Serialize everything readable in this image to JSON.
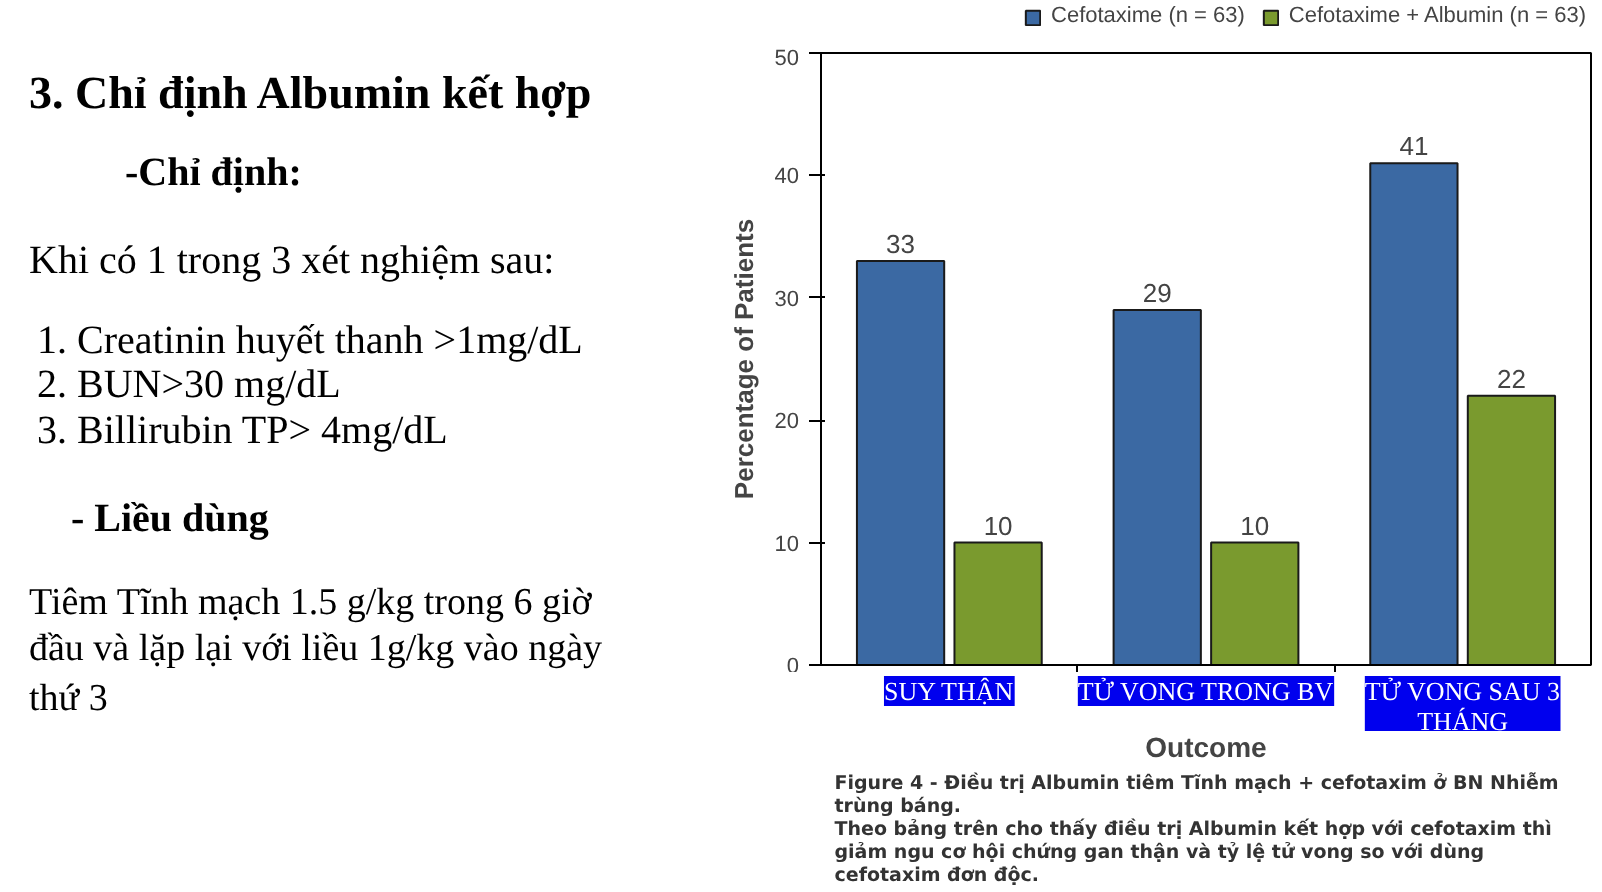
{
  "chart_data": {
    "type": "bar",
    "xlabel": "Outcome",
    "ylabel": "Percentage of Patients",
    "categories": [
      "SUY THẬN",
      "TỬ VONG TRONG BV",
      "TỬ VONG SAU 3 THÁNG"
    ],
    "series": [
      {
        "name": "Cefotaxime (n = 63)",
        "color": "#3b69a3",
        "values": [
          33,
          29,
          41
        ]
      },
      {
        "name": "Cefotaxime + Albumin (n = 63)",
        "color": "#7a9a2e",
        "values": [
          10,
          10,
          22
        ]
      }
    ],
    "ylim": [
      0,
      50
    ],
    "yticks": [
      0,
      10,
      20,
      30,
      40,
      50
    ],
    "grid": false,
    "legend": "top right",
    "data_labels": true,
    "annotations": [
      "3. Chỉ định Albumin kết hợp",
      "-Chỉ định:",
      "Khi có 1 trong 3 xét nghiệm sau:",
      "1.    Creatinin huyết thanh >1mg/dL",
      "2.    BUN>30 mg/dL",
      "3.    Billirubin TP> 4mg/dL",
      "- Liều dùng",
      "Tiêm Tĩnh mạch 1.5 g/kg trong 6 giờ",
      "đầu và lặp lại với liều 1g/kg vào ngày",
      "thứ 3",
      "Figure 4 - Điều trị Albumin tiêm Tĩnh mạch + cefotaxim ở BN Nhiễm trùng báng.",
      "Theo bảng trên cho thấy điều trị Albumin kết hợp với cefotaxim thì giảm ngu cơ hội chứng gan thận  và tỷ lệ tử vong so với dùng cefotaxim đơn độc."
    ]
  }
}
